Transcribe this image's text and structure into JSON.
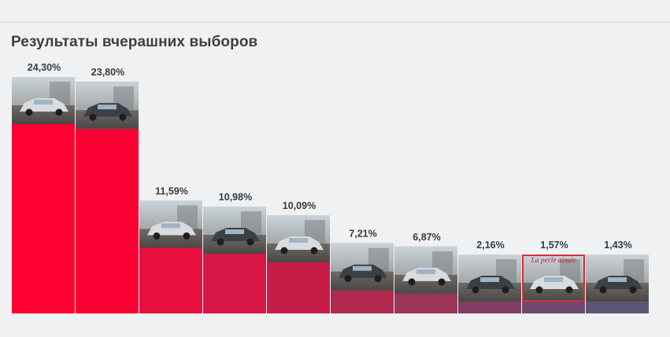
{
  "header": {
    "title": "Результаты вчерашних выборов"
  },
  "chart_data": {
    "type": "bar",
    "title": "Результаты вчерашних выборов",
    "values": [
      24.3,
      23.8,
      11.59,
      10.98,
      10.09,
      7.21,
      6.87,
      2.16,
      1.57,
      1.43
    ],
    "data_labels": [
      "24,30%",
      "23,80%",
      "11,59%",
      "10,98%",
      "10,09%",
      "7,21%",
      "6,87%",
      "2,16%",
      "1,57%",
      "1,43%"
    ],
    "thumbnails": [
      "car-photo-icon",
      "car-photo-icon",
      "car-photo-icon",
      "car-photo-icon",
      "car-photo-icon",
      "car-photo-icon",
      "car-photo-icon",
      "car-photo-icon",
      "car-photo-icon",
      "car-photo-icon"
    ],
    "thumbnail_caption": {
      "index": 8,
      "text": "La perle aimée"
    },
    "bar_colors": [
      "#ff0033",
      "#fd0033",
      "#e8103f",
      "#d71645",
      "#c81c48",
      "#b02a50",
      "#9b3458",
      "#803f62",
      "#6f4a6e",
      "#5e5576"
    ],
    "ylim": [
      0,
      24.3
    ],
    "grid": false,
    "legend": "none"
  }
}
